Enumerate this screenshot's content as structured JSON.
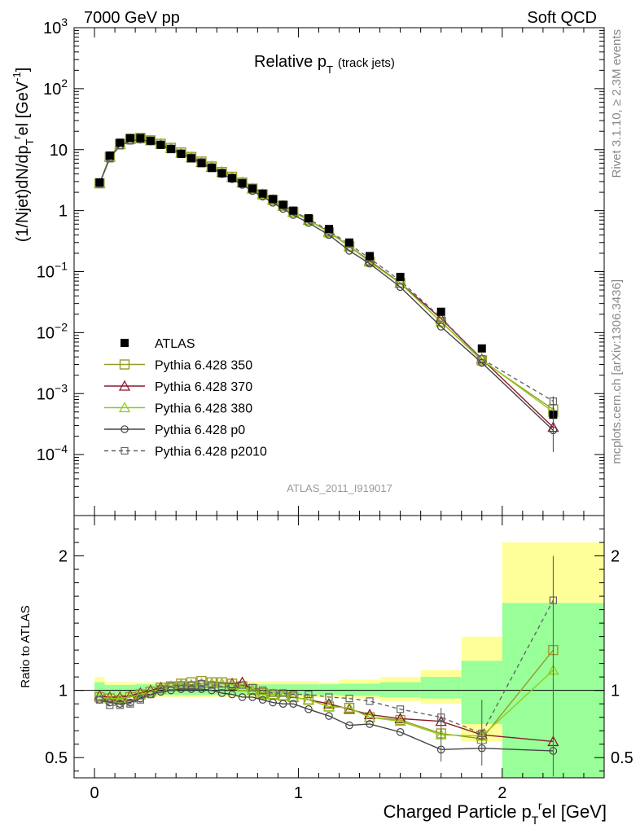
{
  "header": {
    "energy_label": "7000 GeV pp",
    "process_label": "Soft QCD"
  },
  "side_labels": {
    "rivet": "Rivet 3.1.10, ≥ 2.3M events",
    "mcplots": "mcplots.cern.ch [arXiv:1306.3436]"
  },
  "watermark": "ATLAS_2011_I919017",
  "colors": {
    "atlas": "#000000",
    "p350": "#9a9a2a",
    "p370": "#8b1a2b",
    "p380": "#8fcc1a",
    "p0": "#444444",
    "p2010": "#666666",
    "band_yellow": "#ffff99",
    "band_green": "#99ff99"
  },
  "chart_data": [
    {
      "type": "line",
      "title_main": "Relative p",
      "title_sub": "T",
      "title_extra": "(track jets)",
      "ylabel": "(1/Njet)dN/dp",
      "ylabel_sub": "T",
      "ylabel_sup": "r",
      "ylabel_tail": "el [GeV",
      "ylabel_unit_sup": "-1",
      "ylabel_close": "]",
      "yscale": "log",
      "xlim": [
        -0.1,
        2.5
      ],
      "ylim": [
        1e-05,
        1000
      ],
      "yticks": [
        {
          "value": 1000,
          "base": "10",
          "exp": "3"
        },
        {
          "value": 100,
          "base": "10",
          "exp": "2"
        },
        {
          "value": 10,
          "base": "10",
          "exp": ""
        },
        {
          "value": 1,
          "base": "1",
          "exp": ""
        },
        {
          "value": 0.1,
          "base": "10",
          "exp": "−1"
        },
        {
          "value": 0.01,
          "base": "10",
          "exp": "−2"
        },
        {
          "value": 0.001,
          "base": "10",
          "exp": "−3"
        },
        {
          "value": 0.0001,
          "base": "10",
          "exp": "−4"
        }
      ],
      "legend": [
        {
          "key": "atlas",
          "label": "ATLAS"
        },
        {
          "key": "p350",
          "label": "Pythia 6.428 350"
        },
        {
          "key": "p370",
          "label": "Pythia 6.428 370"
        },
        {
          "key": "p380",
          "label": "Pythia 6.428 380"
        },
        {
          "key": "p0",
          "label": "Pythia 6.428 p0"
        },
        {
          "key": "p2010",
          "label": "Pythia 6.428 p2010"
        }
      ],
      "x": [
        0.025,
        0.075,
        0.125,
        0.175,
        0.225,
        0.275,
        0.325,
        0.375,
        0.425,
        0.475,
        0.525,
        0.575,
        0.625,
        0.675,
        0.725,
        0.775,
        0.825,
        0.875,
        0.925,
        0.975,
        1.05,
        1.15,
        1.25,
        1.35,
        1.5,
        1.7,
        1.9,
        2.25
      ],
      "atlas": [
        2.9,
        8.0,
        13.0,
        15.5,
        15.5,
        14.0,
        12.0,
        10.2,
        8.5,
        7.2,
        6.0,
        5.0,
        4.1,
        3.4,
        2.8,
        2.3,
        1.9,
        1.55,
        1.25,
        1.0,
        0.75,
        0.5,
        0.3,
        0.18,
        0.082,
        0.022,
        0.0055,
        0.00045
      ],
      "series": [
        {
          "key": "p350",
          "name": "Pythia 6.428 350",
          "marker": "open-square",
          "values": [
            2.8,
            7.6,
            12.3,
            15.0,
            15.6,
            14.2,
            12.5,
            10.7,
            9.0,
            7.6,
            6.4,
            5.3,
            4.3,
            3.6,
            2.9,
            2.3,
            1.85,
            1.5,
            1.2,
            0.95,
            0.7,
            0.44,
            0.26,
            0.145,
            0.065,
            0.015,
            0.0035,
            0.00055
          ]
        },
        {
          "key": "p370",
          "name": "Pythia 6.428 370",
          "marker": "open-triangle",
          "values": [
            2.8,
            7.6,
            12.2,
            14.8,
            15.2,
            14.0,
            12.3,
            10.5,
            8.8,
            7.4,
            6.2,
            5.2,
            4.3,
            3.5,
            2.9,
            2.3,
            1.85,
            1.5,
            1.2,
            0.95,
            0.7,
            0.45,
            0.26,
            0.15,
            0.065,
            0.017,
            0.0037,
            0.00028
          ]
        },
        {
          "key": "p380",
          "name": "Pythia 6.428 380",
          "marker": "open-triangle",
          "values": [
            2.8,
            7.5,
            12.2,
            14.8,
            15.3,
            14.0,
            12.3,
            10.5,
            8.8,
            7.5,
            6.3,
            5.3,
            4.3,
            3.5,
            2.9,
            2.3,
            1.85,
            1.5,
            1.2,
            0.95,
            0.7,
            0.44,
            0.26,
            0.145,
            0.064,
            0.015,
            0.0036,
            0.0005
          ]
        },
        {
          "key": "p0",
          "name": "Pythia 6.428 p0",
          "marker": "open-circle",
          "values": [
            2.75,
            7.3,
            11.7,
            14.0,
            14.6,
            13.6,
            11.9,
            10.2,
            8.6,
            7.3,
            6.1,
            5.0,
            4.0,
            3.3,
            2.65,
            2.1,
            1.7,
            1.35,
            1.07,
            0.85,
            0.63,
            0.4,
            0.22,
            0.135,
            0.056,
            0.0125,
            0.0032,
            0.00025
          ]
        },
        {
          "key": "p2010",
          "name": "Pythia 6.428 p2010",
          "marker": "open-square-small",
          "dashed": true,
          "values": [
            2.75,
            7.1,
            11.6,
            14.0,
            14.8,
            13.8,
            12.2,
            10.5,
            8.8,
            7.5,
            6.3,
            5.2,
            4.2,
            3.5,
            2.9,
            2.35,
            1.9,
            1.52,
            1.22,
            0.97,
            0.73,
            0.47,
            0.28,
            0.165,
            0.071,
            0.0175,
            0.0037,
            0.00075
          ]
        }
      ]
    },
    {
      "type": "line",
      "ylabel": "Ratio to ATLAS",
      "xlabel": "Charged Particle p",
      "xlabel_sub": "T",
      "xlabel_sup": "r",
      "xlabel_tail": "el [GeV]",
      "ylim": [
        0.35,
        2.3
      ],
      "xticks": [
        {
          "value": 0,
          "label": "0"
        },
        {
          "value": 1,
          "label": "1"
        },
        {
          "value": 2,
          "label": "2"
        }
      ],
      "yticks": [
        {
          "value": 0.5,
          "label": "0.5"
        },
        {
          "value": 1,
          "label": "1"
        },
        {
          "value": 2,
          "label": "2"
        }
      ],
      "bands": [
        {
          "x0": 0.0,
          "x1": 0.05,
          "yellow": [
            0.92,
            1.1
          ],
          "green": [
            0.94,
            1.06
          ]
        },
        {
          "x0": 0.05,
          "x1": 0.2,
          "yellow": [
            0.95,
            1.06
          ],
          "green": [
            0.97,
            1.04
          ]
        },
        {
          "x0": 0.2,
          "x1": 0.6,
          "yellow": [
            0.95,
            1.06
          ],
          "green": [
            0.965,
            1.045
          ]
        },
        {
          "x0": 0.6,
          "x1": 1.1,
          "yellow": [
            0.95,
            1.07
          ],
          "green": [
            0.965,
            1.045
          ]
        },
        {
          "x0": 1.1,
          "x1": 1.2,
          "yellow": [
            0.95,
            1.06
          ],
          "green": [
            0.965,
            1.045
          ]
        },
        {
          "x0": 1.2,
          "x1": 1.4,
          "yellow": [
            0.94,
            1.08
          ],
          "green": [
            0.96,
            1.05
          ]
        },
        {
          "x0": 1.4,
          "x1": 1.6,
          "yellow": [
            0.92,
            1.1
          ],
          "green": [
            0.95,
            1.06
          ]
        },
        {
          "x0": 1.6,
          "x1": 1.8,
          "yellow": [
            0.9,
            1.15
          ],
          "green": [
            0.94,
            1.1
          ]
        },
        {
          "x0": 1.8,
          "x1": 2.0,
          "yellow": [
            0.62,
            1.4
          ],
          "green": [
            0.75,
            1.22
          ]
        },
        {
          "x0": 2.0,
          "x1": 2.5,
          "yellow": [
            0.35,
            2.1
          ],
          "green": [
            0.35,
            1.65
          ]
        }
      ],
      "series": [
        {
          "key": "p350",
          "marker": "open-square",
          "values": [
            0.95,
            0.94,
            0.93,
            0.95,
            0.97,
            0.99,
            1.02,
            1.03,
            1.05,
            1.06,
            1.07,
            1.06,
            1.06,
            1.05,
            1.03,
            1.01,
            0.98,
            0.97,
            0.96,
            0.95,
            0.93,
            0.88,
            0.87,
            0.8,
            0.78,
            0.68,
            0.64,
            1.3
          ]
        },
        {
          "key": "p370",
          "marker": "open-triangle",
          "values": [
            0.96,
            0.95,
            0.95,
            0.96,
            0.98,
            1.0,
            1.02,
            1.03,
            1.04,
            1.04,
            1.05,
            1.05,
            1.05,
            1.05,
            1.06,
            1.0,
            0.97,
            0.97,
            0.96,
            0.95,
            0.93,
            0.9,
            0.86,
            0.82,
            0.79,
            0.77,
            0.67,
            0.62
          ]
        },
        {
          "key": "p380",
          "marker": "open-triangle",
          "values": [
            0.95,
            0.94,
            0.94,
            0.95,
            0.97,
            0.99,
            1.01,
            1.03,
            1.04,
            1.04,
            1.05,
            1.05,
            1.05,
            1.04,
            1.03,
            1.0,
            0.97,
            0.97,
            0.96,
            0.95,
            0.93,
            0.88,
            0.87,
            0.8,
            0.77,
            0.67,
            0.66,
            1.15
          ]
        },
        {
          "key": "p0",
          "marker": "open-circle",
          "values": [
            0.93,
            0.91,
            0.9,
            0.91,
            0.94,
            0.97,
            0.99,
            1.0,
            1.01,
            1.01,
            1.01,
            1.0,
            0.98,
            0.97,
            0.95,
            0.95,
            0.93,
            0.91,
            0.9,
            0.9,
            0.86,
            0.81,
            0.74,
            0.75,
            0.69,
            0.56,
            0.57,
            0.55
          ]
        },
        {
          "key": "p2010",
          "marker": "open-square-small",
          "dashed": true,
          "values": [
            0.93,
            0.89,
            0.89,
            0.9,
            0.93,
            0.97,
            1.01,
            1.03,
            1.04,
            1.04,
            1.05,
            1.04,
            1.03,
            1.03,
            1.04,
            1.02,
            1.0,
            0.98,
            0.98,
            0.97,
            0.97,
            0.95,
            0.94,
            0.92,
            0.86,
            0.8,
            0.68,
            1.67
          ]
        }
      ]
    }
  ]
}
